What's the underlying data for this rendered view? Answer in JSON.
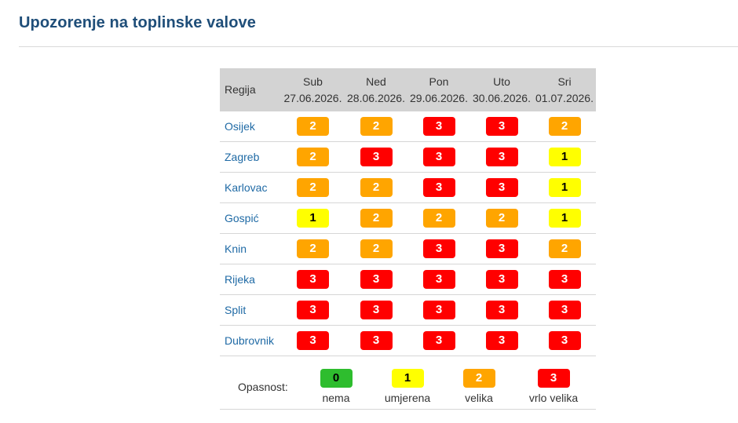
{
  "page": {
    "title": "Upozorenje na toplinske valove"
  },
  "table": {
    "region_header": "Regija",
    "days": [
      {
        "name": "Sub",
        "date": "27.06.2026."
      },
      {
        "name": "Ned",
        "date": "28.06.2026."
      },
      {
        "name": "Pon",
        "date": "29.06.2026."
      },
      {
        "name": "Uto",
        "date": "30.06.2026."
      },
      {
        "name": "Sri",
        "date": "01.07.2026."
      }
    ],
    "rows": [
      {
        "region": "Osijek",
        "levels": [
          "2",
          "2",
          "3",
          "3",
          "2"
        ]
      },
      {
        "region": "Zagreb",
        "levels": [
          "2",
          "3",
          "3",
          "3",
          "1"
        ]
      },
      {
        "region": "Karlovac",
        "levels": [
          "2",
          "2",
          "3",
          "3",
          "1"
        ]
      },
      {
        "region": "Gospić",
        "levels": [
          "1",
          "2",
          "2",
          "2",
          "1"
        ]
      },
      {
        "region": "Knin",
        "levels": [
          "2",
          "2",
          "3",
          "3",
          "2"
        ]
      },
      {
        "region": "Rijeka",
        "levels": [
          "3",
          "3",
          "3",
          "3",
          "3"
        ]
      },
      {
        "region": "Split",
        "levels": [
          "3",
          "3",
          "3",
          "3",
          "3"
        ]
      },
      {
        "region": "Dubrovnik",
        "levels": [
          "3",
          "3",
          "3",
          "3",
          "3"
        ]
      }
    ]
  },
  "legend": {
    "label": "Opasnost:",
    "items": [
      {
        "level": "0",
        "text": "nema"
      },
      {
        "level": "1",
        "text": "umjerena"
      },
      {
        "level": "2",
        "text": "velika"
      },
      {
        "level": "3",
        "text": "vrlo velika"
      }
    ]
  },
  "colors": {
    "level_0": "#2ebd2e",
    "level_1": "#ffff00",
    "level_2": "#ffa500",
    "level_3": "#ff0000",
    "title": "#1f4e79",
    "region_link": "#1f6aa5"
  }
}
